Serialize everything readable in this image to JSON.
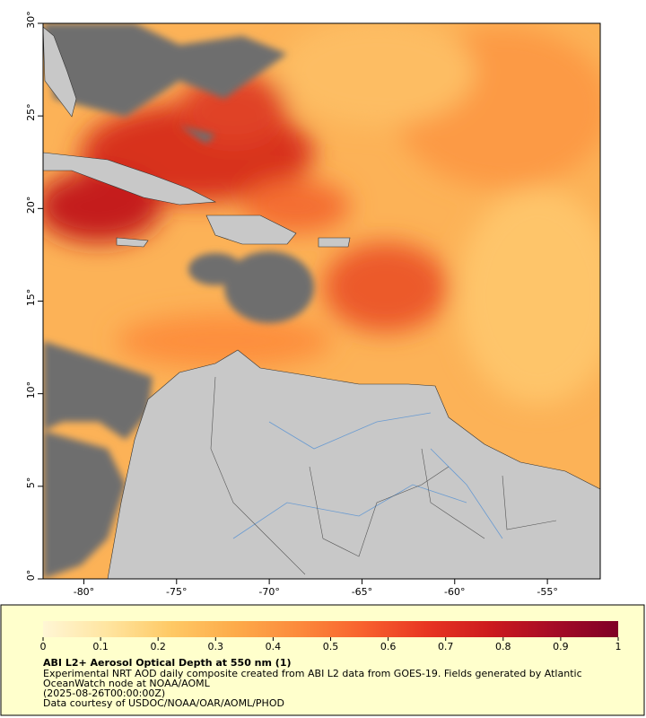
{
  "map": {
    "xlim": [
      -82.2,
      -52.15
    ],
    "ylim": [
      0,
      30
    ],
    "xticks": [
      {
        "value": -80,
        "label": "-80°"
      },
      {
        "value": -75,
        "label": "-75°"
      },
      {
        "value": -70,
        "label": "-70°"
      },
      {
        "value": -65,
        "label": "-65°"
      },
      {
        "value": -60,
        "label": "-60°"
      },
      {
        "value": -55,
        "label": "-55°"
      }
    ],
    "yticks": [
      {
        "value": 0,
        "label": "0°"
      },
      {
        "value": 5,
        "label": "5°"
      },
      {
        "value": 10,
        "label": "10°"
      },
      {
        "value": 15,
        "label": "15°"
      },
      {
        "value": 20,
        "label": "20°"
      },
      {
        "value": 25,
        "label": "25°"
      },
      {
        "value": 30,
        "label": "30°"
      }
    ]
  },
  "colorbar": {
    "clim": [
      0,
      1
    ],
    "ticks": [
      0,
      0.1,
      0.2,
      0.3,
      0.4,
      0.5,
      0.6,
      0.7,
      0.8,
      0.9,
      1
    ],
    "colormap": [
      "#fff6d5",
      "#ffe5a0",
      "#fec965",
      "#fdab4a",
      "#fc8a3c",
      "#f8622e",
      "#e83522",
      "#cc1a1e",
      "#a50b26",
      "#7f0026"
    ]
  },
  "caption": {
    "title": "ABI L2+ Aerosol Optical Depth at 550 nm (1)",
    "lines": [
      "Experimental NRT AOD daily composite created from ABI L2 data from GOES-19. Fields generated by Atlantic",
      "OceanWatch node at NOAA/AOML",
      "(2025-08-26T00:00:00Z)",
      "Data courtesy of USDOC/NOAA/OAR/AOML/PHOD"
    ]
  }
}
